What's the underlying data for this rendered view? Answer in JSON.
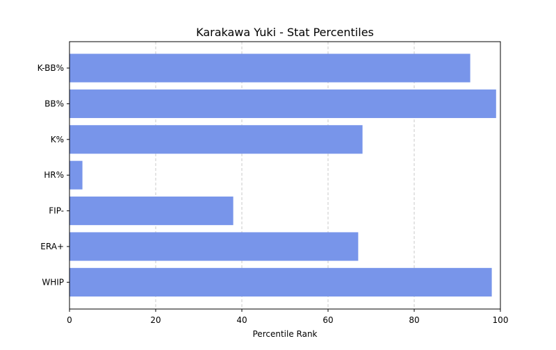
{
  "chart_data": {
    "type": "bar",
    "orientation": "horizontal",
    "title": "Karakawa Yuki - Stat Percentiles",
    "xlabel": "Percentile Rank",
    "ylabel": "",
    "categories": [
      "K-BB%",
      "BB%",
      "K%",
      "HR%",
      "FIP-",
      "ERA+",
      "WHIP"
    ],
    "values": [
      93,
      99,
      68,
      3,
      38,
      67,
      98
    ],
    "xlim": [
      0,
      100
    ],
    "xticks": [
      0,
      20,
      40,
      60,
      80,
      100
    ],
    "grid": "x-dashed",
    "bar_color": "#7895ea"
  }
}
